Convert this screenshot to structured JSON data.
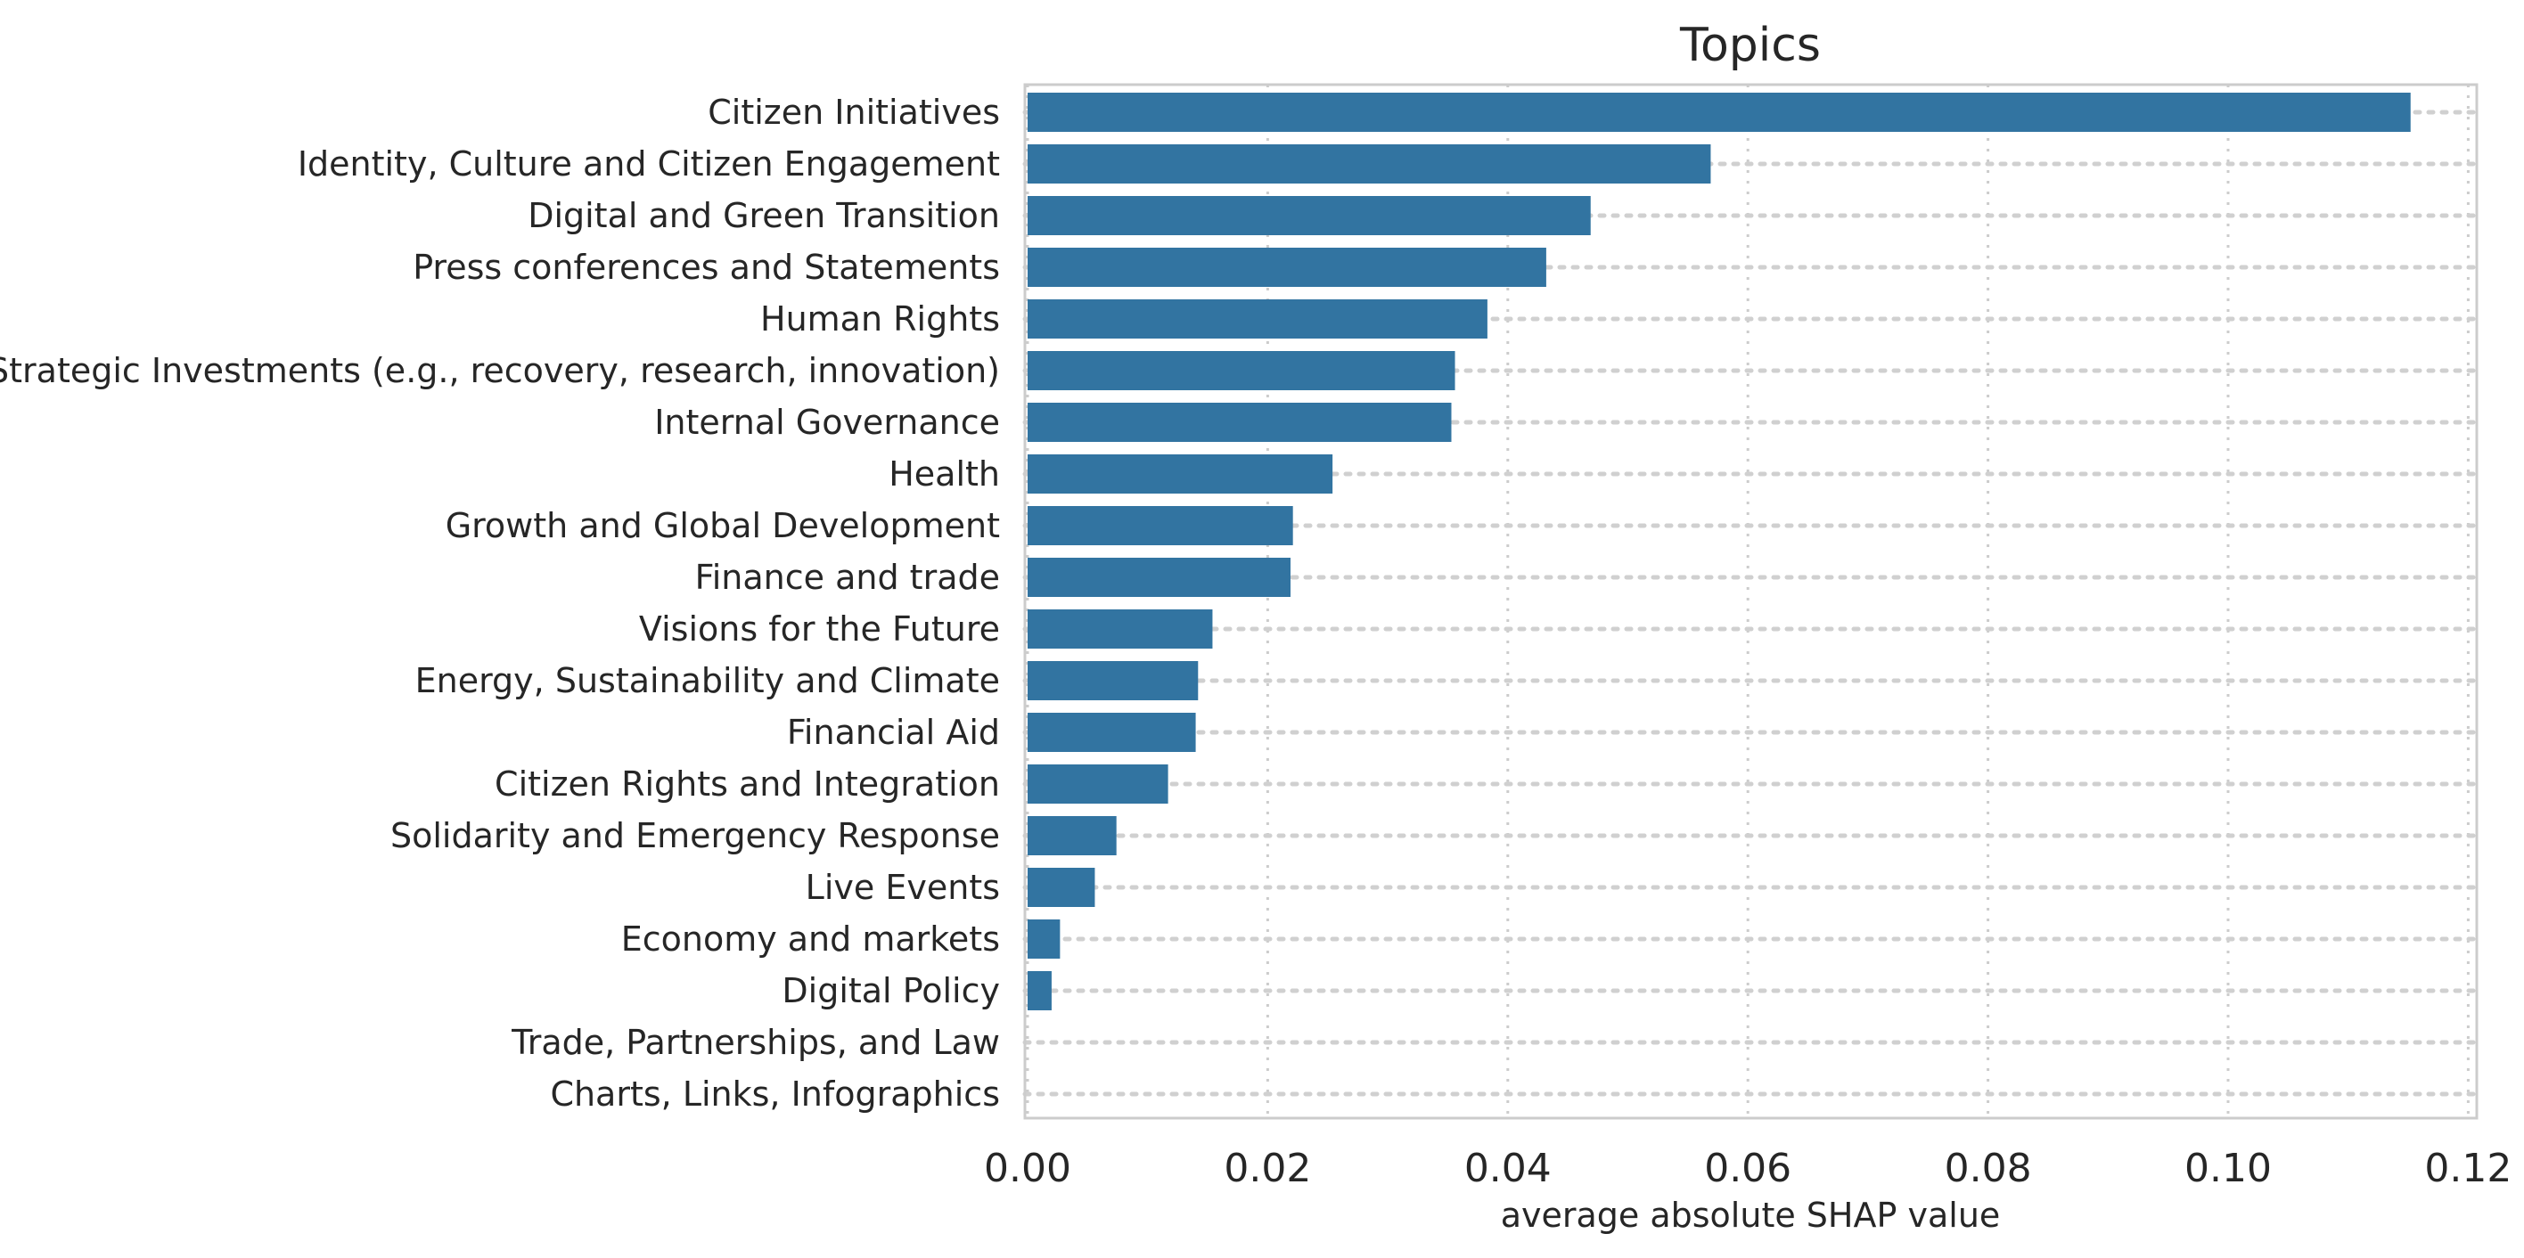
{
  "chart_data": {
    "type": "bar",
    "orientation": "horizontal",
    "title": "Topics",
    "xlabel": "average absolute SHAP value",
    "ylabel": "",
    "xlim": [
      0,
      0.121
    ],
    "xticks": [
      0.0,
      0.02,
      0.04,
      0.06,
      0.08,
      0.1,
      0.12
    ],
    "xtick_labels": [
      "0.00",
      "0.02",
      "0.04",
      "0.06",
      "0.08",
      "0.10",
      "0.12"
    ],
    "bar_color": "#3274a1",
    "grid": true,
    "categories": [
      "Citizen Initiatives",
      "Identity, Culture and Citizen Engagement",
      "Digital and Green Transition",
      "Press conferences and Statements",
      "Human Rights",
      "Strategic Investments (e.g., recovery, research, innovation)",
      "Internal Governance",
      "Health",
      "Growth and Global Development",
      "Finance and trade",
      "Visions for the Future",
      "Energy, Sustainability and Climate",
      "Financial Aid",
      "Citizen Rights and Integration",
      "Solidarity and Emergency Response",
      "Live Events",
      "Economy and markets",
      "Digital Policy",
      "Trade, Partnerships, and Law",
      "Charts, Links, Infographics"
    ],
    "values": [
      0.1152,
      0.0569,
      0.0469,
      0.0432,
      0.0383,
      0.0356,
      0.0353,
      0.0254,
      0.0221,
      0.0219,
      0.0154,
      0.0142,
      0.014,
      0.0117,
      0.0074,
      0.0056,
      0.0027,
      0.002,
      0.0,
      0.0
    ]
  }
}
